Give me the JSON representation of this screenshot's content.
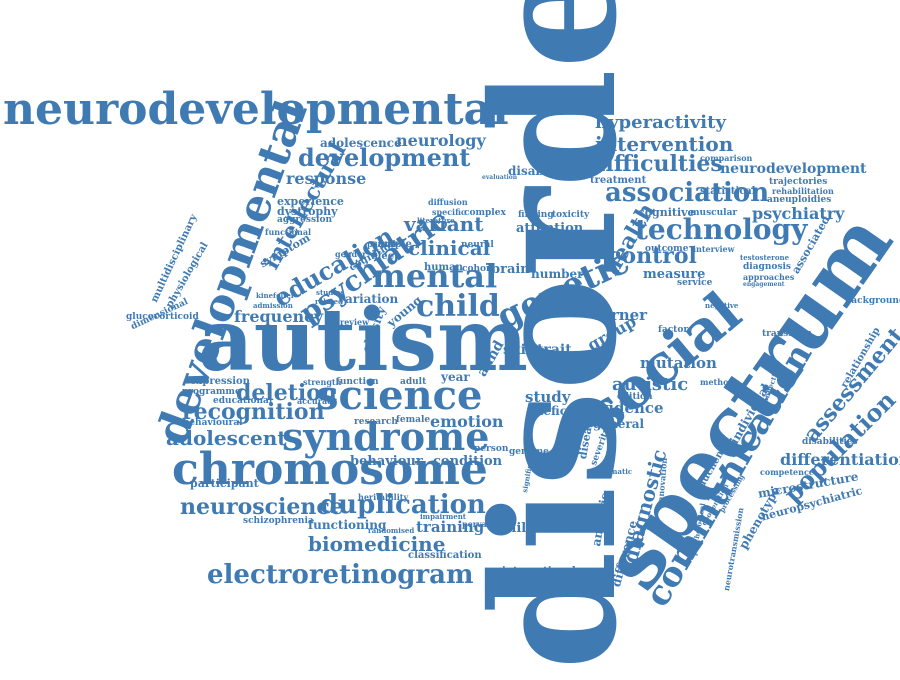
{
  "palette": {
    "word": "#3f7ab3",
    "background": "#ffffff"
  },
  "words": [
    {
      "key": "disorder",
      "text": "disorder"
    },
    {
      "key": "autism",
      "text": "autism"
    },
    {
      "key": "spectrum",
      "text": "spectrum"
    },
    {
      "key": "social",
      "text": "social"
    },
    {
      "key": "chromosome",
      "text": "chromosome"
    },
    {
      "key": "neurodevelopmental",
      "text": "neurodevelopmental"
    },
    {
      "key": "developmental",
      "text": "developmental"
    },
    {
      "key": "syndrome",
      "text": "syndrome"
    },
    {
      "key": "communication",
      "text": "communication"
    },
    {
      "key": "science",
      "text": "science"
    },
    {
      "key": "genetic",
      "text": "genetic"
    },
    {
      "key": "mental",
      "text": "mental"
    },
    {
      "key": "child",
      "text": "child"
    },
    {
      "key": "technology",
      "text": "technology"
    },
    {
      "key": "association",
      "text": "association"
    },
    {
      "key": "electroretinogram",
      "text": "electroretinogram"
    },
    {
      "key": "duplication",
      "text": "duplication"
    },
    {
      "key": "neuroscience",
      "text": "neuroscience"
    },
    {
      "key": "recognition",
      "text": "recognition"
    },
    {
      "key": "deletion",
      "text": "deletion"
    },
    {
      "key": "psychiatric",
      "text": "psychiatric"
    },
    {
      "key": "education",
      "text": "education"
    },
    {
      "key": "intellectual",
      "text": "intellectual"
    },
    {
      "key": "development",
      "text": "development"
    },
    {
      "key": "difficulties",
      "text": "difficulties"
    },
    {
      "key": "intervention",
      "text": "intervention"
    },
    {
      "key": "hyperactivity",
      "text": "hyperactivity"
    },
    {
      "key": "population",
      "text": "population"
    },
    {
      "key": "assessment",
      "text": "assessment"
    },
    {
      "key": "health",
      "text": "health"
    },
    {
      "key": "diagnostic",
      "text": "diagnostic"
    },
    {
      "key": "adolescent",
      "text": "adolescent"
    },
    {
      "key": "biomedicine",
      "text": "biomedicine"
    },
    {
      "key": "variant",
      "text": "variant"
    },
    {
      "key": "clinical",
      "text": "clinical"
    },
    {
      "key": "control",
      "text": "control"
    },
    {
      "key": "psychiatry",
      "text": "psychiatry"
    },
    {
      "key": "differentiation",
      "text": "differentiation"
    },
    {
      "key": "neurodevelopment",
      "text": "neurodevelopment"
    },
    {
      "key": "autistic",
      "text": "autistic"
    },
    {
      "key": "frequency",
      "text": "frequency"
    },
    {
      "key": "response",
      "text": "response"
    },
    {
      "key": "neurology",
      "text": "neurology"
    },
    {
      "key": "adolescence",
      "text": "adolescence"
    },
    {
      "key": "disability",
      "text": "disability"
    },
    {
      "key": "emotion",
      "text": "emotion"
    },
    {
      "key": "behaviour",
      "text": "behaviour"
    },
    {
      "key": "condition",
      "text": "condition"
    },
    {
      "key": "training",
      "text": "training"
    },
    {
      "key": "childhood",
      "text": "childhood"
    },
    {
      "key": "functioning",
      "text": "functioning"
    },
    {
      "key": "classification",
      "text": "classification"
    },
    {
      "key": "international",
      "text": "international"
    },
    {
      "key": "evidence",
      "text": "evidence"
    },
    {
      "key": "mutation",
      "text": "mutation"
    },
    {
      "key": "group",
      "text": "group"
    },
    {
      "key": "turner",
      "text": "turner"
    },
    {
      "key": "measure",
      "text": "measure"
    },
    {
      "key": "skill",
      "text": "skill"
    },
    {
      "key": "trait",
      "text": "trait"
    },
    {
      "key": "study",
      "text": "study"
    },
    {
      "key": "deficit",
      "text": "deficit"
    },
    {
      "key": "adhd",
      "text": "adhd"
    },
    {
      "key": "year",
      "text": "year"
    },
    {
      "key": "attention",
      "text": "attention"
    },
    {
      "key": "brain",
      "text": "brain"
    },
    {
      "key": "number",
      "text": "number"
    },
    {
      "key": "risk",
      "text": "risk"
    },
    {
      "key": "variation",
      "text": "variation"
    },
    {
      "key": "young",
      "text": "young"
    },
    {
      "key": "obesity",
      "text": "obesity"
    },
    {
      "key": "experience",
      "text": "experience"
    },
    {
      "key": "dystrophy",
      "text": "dystrophy"
    },
    {
      "key": "aggression",
      "text": "aggression"
    },
    {
      "key": "symptom",
      "text": "symptom"
    },
    {
      "key": "multidisciplinary",
      "text": "multidisciplinary"
    },
    {
      "key": "physiological",
      "text": "physiological"
    },
    {
      "key": "dimensional",
      "text": "dimensional"
    },
    {
      "key": "glucocorticoid",
      "text": "glucocorticoid"
    },
    {
      "key": "expression",
      "text": "expression"
    },
    {
      "key": "programme",
      "text": "programme"
    },
    {
      "key": "educational",
      "text": "educational"
    },
    {
      "key": "behavioural",
      "text": "behavioural"
    },
    {
      "key": "participant",
      "text": "participant"
    },
    {
      "key": "schizophrenia",
      "text": "schizophrenia"
    },
    {
      "key": "heritability",
      "text": "heritability"
    },
    {
      "key": "randomised",
      "text": "randomised"
    },
    {
      "key": "pervasive",
      "text": "pervasive"
    },
    {
      "key": "impairment",
      "text": "impairment"
    },
    {
      "key": "person",
      "text": "person"
    },
    {
      "key": "genome",
      "text": "genome"
    },
    {
      "key": "female",
      "text": "female"
    },
    {
      "key": "research",
      "text": "research"
    },
    {
      "key": "adult",
      "text": "adult"
    },
    {
      "key": "function",
      "text": "function"
    },
    {
      "key": "strength",
      "text": "strength"
    },
    {
      "key": "accuracy",
      "text": "accuracy"
    },
    {
      "key": "sleep",
      "text": "sleep"
    },
    {
      "key": "sample",
      "text": "sample"
    },
    {
      "key": "cognition",
      "text": "cognition"
    },
    {
      "key": "human",
      "text": "human"
    },
    {
      "key": "cohort",
      "text": "cohort"
    },
    {
      "key": "neural",
      "text": "neural"
    },
    {
      "key": "finding",
      "text": "finding"
    },
    {
      "key": "toxicity",
      "text": "toxicity"
    },
    {
      "key": "complex",
      "text": "complex"
    },
    {
      "key": "specific",
      "text": "specific"
    },
    {
      "key": "diffusion",
      "text": "diffusion"
    },
    {
      "key": "literature",
      "text": "literature"
    },
    {
      "key": "parent",
      "text": "parent"
    },
    {
      "key": "gender",
      "text": "gender"
    },
    {
      "key": "treatment",
      "text": "treatment"
    },
    {
      "key": "cognitive",
      "text": "cognitive"
    },
    {
      "key": "muscular",
      "text": "muscular"
    },
    {
      "key": "statistical",
      "text": "statistical"
    },
    {
      "key": "comparison",
      "text": "comparison"
    },
    {
      "key": "trajectories",
      "text": "trajectories"
    },
    {
      "key": "rehabilitation",
      "text": "rehabilitation"
    },
    {
      "key": "aneuploidies",
      "text": "aneuploidies"
    },
    {
      "key": "associated",
      "text": "associated"
    },
    {
      "key": "diagnosis",
      "text": "diagnosis"
    },
    {
      "key": "approaches",
      "text": "approaches"
    },
    {
      "key": "engagement",
      "text": "engagement"
    },
    {
      "key": "interview",
      "text": "interview"
    },
    {
      "key": "outcome",
      "text": "outcome"
    },
    {
      "key": "service",
      "text": "service"
    },
    {
      "key": "background",
      "text": "background"
    },
    {
      "key": "relationship",
      "text": "relationship"
    },
    {
      "key": "transition",
      "text": "transition"
    },
    {
      "key": "factor",
      "text": "factor"
    },
    {
      "key": "method",
      "text": "method"
    },
    {
      "key": "edition",
      "text": "edition"
    },
    {
      "key": "general",
      "text": "general"
    },
    {
      "key": "individual",
      "text": "individual"
    },
    {
      "key": "disabilities",
      "text": "disabilities"
    },
    {
      "key": "microstructure",
      "text": "microstructure"
    },
    {
      "key": "competence",
      "text": "competence"
    },
    {
      "key": "neuropsychiatric",
      "text": "neuropsychiatric"
    },
    {
      "key": "phenotype",
      "text": "phenotype"
    },
    {
      "key": "duchenne",
      "text": "duchenne"
    },
    {
      "key": "disease",
      "text": "disease"
    },
    {
      "key": "severity",
      "text": "severity"
    },
    {
      "key": "difference",
      "text": "difference"
    },
    {
      "key": "analysis",
      "text": "analysis"
    },
    {
      "key": "neurotransmission",
      "text": "neurotransmission"
    },
    {
      "key": "innovation",
      "text": "innovation"
    },
    {
      "key": "pragmatic",
      "text": "pragmatic"
    },
    {
      "key": "evaluation",
      "text": "evaluation"
    },
    {
      "key": "significant",
      "text": "significant"
    },
    {
      "key": "copy",
      "text": "copy"
    },
    {
      "key": "review",
      "text": "review"
    },
    {
      "key": "studies",
      "text": "studies"
    },
    {
      "key": "photopic",
      "text": "photopic"
    },
    {
      "key": "kinefelter",
      "text": "kinefelter"
    },
    {
      "key": "admission",
      "text": "admission"
    },
    {
      "key": "related",
      "text": "related"
    },
    {
      "key": "negative",
      "text": "negative"
    },
    {
      "key": "testosterone",
      "text": "testosterone"
    },
    {
      "key": "connectivity",
      "text": "connectivity"
    },
    {
      "key": "psychological",
      "text": "psychological"
    },
    {
      "key": "cooperation",
      "text": "cooperation"
    },
    {
      "key": "processing",
      "text": "processing"
    },
    {
      "key": "functional",
      "text": "functional"
    }
  ]
}
